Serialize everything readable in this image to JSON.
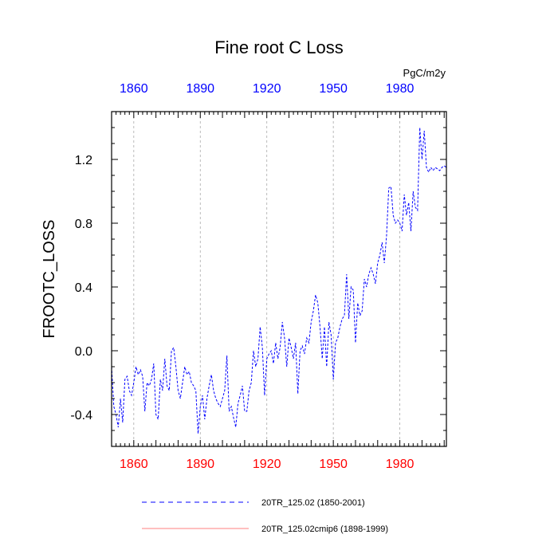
{
  "chart_data": {
    "type": "line",
    "title": "Fine root C Loss",
    "units": "PgC/m2y",
    "ylabel": "FROOTC_LOSS",
    "xlim": [
      1850,
      2001
    ],
    "ylim": [
      -0.6,
      1.5
    ],
    "yticks": [
      -0.4,
      0.0,
      0.4,
      0.8,
      1.2
    ],
    "ytick_labels": [
      "-0.4",
      "0.0",
      "0.4",
      "0.8",
      "1.2"
    ],
    "xticks": [
      1860,
      1890,
      1920,
      1950,
      1980
    ],
    "xtick_labels": [
      "1860",
      "1890",
      "1920",
      "1950",
      "1980"
    ],
    "grid": "vertical dashed at x ticks",
    "series": [
      {
        "name": "20TR_125.02 (1850-2001)",
        "color": "#0000ff",
        "style": "dashed",
        "x": [
          1850,
          1851,
          1852,
          1853,
          1854,
          1855,
          1856,
          1857,
          1858,
          1859,
          1860,
          1861,
          1862,
          1863,
          1864,
          1865,
          1866,
          1867,
          1868,
          1869,
          1870,
          1871,
          1872,
          1873,
          1874,
          1875,
          1876,
          1877,
          1878,
          1879,
          1880,
          1881,
          1882,
          1883,
          1884,
          1885,
          1886,
          1887,
          1888,
          1889,
          1890,
          1891,
          1892,
          1893,
          1894,
          1895,
          1896,
          1897,
          1898,
          1899,
          1900,
          1901,
          1902,
          1903,
          1904,
          1905,
          1906,
          1907,
          1908,
          1909,
          1910,
          1911,
          1912,
          1913,
          1914,
          1915,
          1916,
          1917,
          1918,
          1919,
          1920,
          1921,
          1922,
          1923,
          1924,
          1925,
          1926,
          1927,
          1928,
          1929,
          1930,
          1931,
          1932,
          1933,
          1934,
          1935,
          1936,
          1937,
          1938,
          1939,
          1940,
          1941,
          1942,
          1943,
          1944,
          1945,
          1946,
          1947,
          1948,
          1949,
          1950,
          1951,
          1952,
          1953,
          1954,
          1955,
          1956,
          1957,
          1958,
          1959,
          1960,
          1961,
          1962,
          1963,
          1964,
          1965,
          1966,
          1967,
          1968,
          1969,
          1970,
          1971,
          1972,
          1973,
          1974,
          1975,
          1976,
          1977,
          1978,
          1979,
          1980,
          1981,
          1982,
          1983,
          1984,
          1985,
          1986,
          1987,
          1988,
          1989,
          1990,
          1991,
          1992,
          1993,
          1994,
          1995,
          1996,
          1997,
          1998,
          1999,
          2000,
          2001
        ],
        "values": [
          -0.1,
          -0.35,
          -0.4,
          -0.48,
          -0.3,
          -0.45,
          -0.18,
          -0.16,
          -0.25,
          -0.28,
          -0.2,
          -0.1,
          -0.15,
          -0.12,
          -0.16,
          -0.38,
          -0.2,
          -0.22,
          -0.18,
          -0.08,
          -0.4,
          -0.43,
          -0.18,
          -0.25,
          -0.05,
          -0.22,
          -0.25,
          0.0,
          0.02,
          -0.1,
          -0.25,
          -0.3,
          -0.2,
          -0.1,
          -0.15,
          -0.13,
          -0.2,
          -0.22,
          -0.25,
          -0.52,
          -0.35,
          -0.28,
          -0.43,
          -0.3,
          -0.22,
          -0.15,
          -0.25,
          -0.3,
          -0.33,
          -0.35,
          -0.3,
          -0.25,
          -0.03,
          -0.38,
          -0.35,
          -0.42,
          -0.48,
          -0.33,
          -0.28,
          -0.22,
          -0.38,
          -0.38,
          -0.25,
          -0.2,
          0.0,
          -0.1,
          -0.05,
          0.15,
          0.02,
          -0.28,
          -0.05,
          -0.02,
          0.0,
          -0.08,
          0.05,
          -0.05,
          0.02,
          0.18,
          0.08,
          -0.1,
          0.08,
          0.02,
          -0.05,
          0.05,
          -0.27,
          0.0,
          0.03,
          -0.02,
          0.08,
          0.05,
          0.18,
          0.25,
          0.35,
          0.3,
          0.15,
          -0.05,
          0.15,
          -0.1,
          0.18,
          0.1,
          -0.18,
          0.05,
          0.08,
          0.15,
          0.2,
          0.22,
          0.48,
          0.2,
          0.4,
          0.38,
          0.05,
          0.3,
          0.22,
          0.25,
          0.45,
          0.4,
          0.48,
          0.52,
          0.48,
          0.42,
          0.55,
          0.6,
          0.68,
          0.55,
          0.72,
          1.02,
          1.03,
          0.85,
          0.8,
          0.82,
          0.8,
          0.75,
          0.98,
          0.85,
          0.93,
          0.75,
          1.0,
          0.9,
          0.88,
          1.4,
          1.2,
          1.38,
          1.15,
          1.12,
          1.15,
          1.13,
          1.15,
          1.14,
          1.13,
          1.15,
          1.16,
          1.15
        ]
      },
      {
        "name": "20TR_125.02cmip6 (1898-1999)",
        "color": "#ff0000",
        "style": "solid",
        "x": [],
        "values": []
      }
    ]
  }
}
